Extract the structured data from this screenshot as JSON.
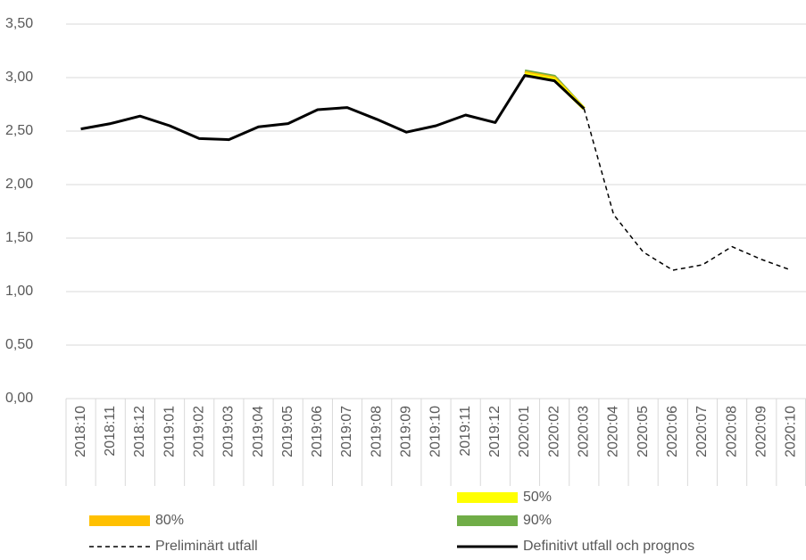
{
  "chart_data": {
    "type": "line",
    "categories": [
      "2018:10",
      "2018:11",
      "2018:12",
      "2019:01",
      "2019:02",
      "2019:03",
      "2019:04",
      "2019:05",
      "2019:06",
      "2019:07",
      "2019:08",
      "2019:09",
      "2019:10",
      "2019:11",
      "2019:12",
      "2020:01",
      "2020:02",
      "2020:03",
      "2020:04",
      "2020:05",
      "2020:06",
      "2020:07",
      "2020:08",
      "2020:09",
      "2020:10"
    ],
    "series": [
      {
        "name": "50%",
        "color": "#ffff00",
        "style": "band",
        "values": [
          null,
          null,
          null,
          null,
          null,
          null,
          null,
          null,
          null,
          null,
          null,
          null,
          null,
          null,
          null,
          3.03,
          2.98,
          2.71,
          null,
          null,
          null,
          null,
          null,
          null,
          null
        ]
      },
      {
        "name": "80%",
        "color": "#ffc000",
        "style": "band",
        "values": [
          null,
          null,
          null,
          null,
          null,
          null,
          null,
          null,
          null,
          null,
          null,
          null,
          null,
          null,
          null,
          3.045,
          2.995,
          2.71,
          null,
          null,
          null,
          null,
          null,
          null,
          null
        ]
      },
      {
        "name": "90%",
        "color": "#70ad47",
        "style": "band",
        "values": [
          null,
          null,
          null,
          null,
          null,
          null,
          null,
          null,
          null,
          null,
          null,
          null,
          null,
          null,
          null,
          3.06,
          3.01,
          2.71,
          null,
          null,
          null,
          null,
          null,
          null,
          null
        ]
      },
      {
        "name": "Preliminärt utfall",
        "color": "#000000",
        "style": "dashed",
        "values": [
          null,
          null,
          null,
          null,
          null,
          null,
          null,
          null,
          null,
          null,
          null,
          null,
          null,
          null,
          null,
          null,
          null,
          2.71,
          1.72,
          1.37,
          1.2,
          1.25,
          1.42,
          1.3,
          1.2
        ]
      },
      {
        "name": "Definitivt utfall och prognos",
        "color": "#000000",
        "style": "solid",
        "values": [
          2.52,
          2.57,
          2.64,
          2.55,
          2.43,
          2.42,
          2.54,
          2.57,
          2.7,
          2.72,
          2.61,
          2.49,
          2.55,
          2.65,
          2.58,
          3.02,
          2.97,
          2.71,
          null,
          null,
          null,
          null,
          null,
          null,
          null
        ]
      }
    ],
    "ylim": [
      0,
      3.5
    ],
    "yticks": [
      {
        "value": 0,
        "label": "0,00"
      },
      {
        "value": 0.5,
        "label": "0,50"
      },
      {
        "value": 1,
        "label": "1,00"
      },
      {
        "value": 1.5,
        "label": "1,50"
      },
      {
        "value": 2,
        "label": "2,00"
      },
      {
        "value": 2.5,
        "label": "2,50"
      },
      {
        "value": 3,
        "label": "3,00"
      },
      {
        "value": 3.5,
        "label": "3,50"
      }
    ],
    "grid": true
  }
}
